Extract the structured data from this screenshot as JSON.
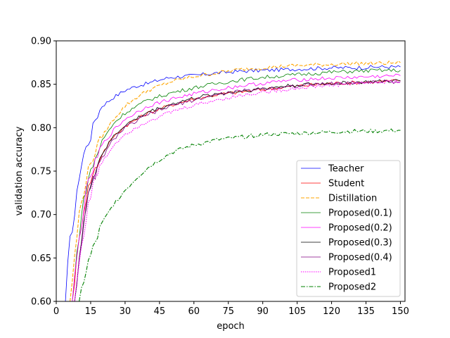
{
  "chart_data": {
    "type": "line",
    "xlabel": "epoch",
    "ylabel": "validation accuracy",
    "xlim": [
      0,
      152
    ],
    "ylim": [
      0.6,
      0.9
    ],
    "xticks": [
      0,
      15,
      30,
      45,
      60,
      75,
      90,
      105,
      120,
      135,
      150
    ],
    "yticks": [
      0.6,
      0.65,
      0.7,
      0.75,
      0.8,
      0.85,
      0.9
    ],
    "xtick_labels": [
      "0",
      "15",
      "30",
      "45",
      "60",
      "75",
      "90",
      "105",
      "120",
      "135",
      "150"
    ],
    "ytick_labels": [
      "0.60",
      "0.65",
      "0.70",
      "0.75",
      "0.80",
      "0.85",
      "0.90"
    ],
    "grid": false,
    "legend_position": "lower-right",
    "series": [
      {
        "name": "Teacher",
        "color": "#0000ff",
        "dash": "solid",
        "points": [
          [
            4,
            0.6
          ],
          [
            5,
            0.64
          ],
          [
            6,
            0.67
          ],
          [
            8,
            0.7
          ],
          [
            10,
            0.745
          ],
          [
            12,
            0.77
          ],
          [
            15,
            0.79
          ],
          [
            17,
            0.81
          ],
          [
            20,
            0.825
          ],
          [
            25,
            0.835
          ],
          [
            30,
            0.843
          ],
          [
            35,
            0.848
          ],
          [
            40,
            0.851
          ],
          [
            45,
            0.855
          ],
          [
            50,
            0.858
          ],
          [
            55,
            0.859
          ],
          [
            60,
            0.86
          ],
          [
            70,
            0.863
          ],
          [
            80,
            0.865
          ],
          [
            90,
            0.866
          ],
          [
            100,
            0.867
          ],
          [
            110,
            0.868
          ],
          [
            120,
            0.869
          ],
          [
            130,
            0.869
          ],
          [
            140,
            0.87
          ],
          [
            150,
            0.87
          ]
        ]
      },
      {
        "name": "Student",
        "color": "#ff0000",
        "dash": "solid",
        "points": [
          [
            7,
            0.6
          ],
          [
            9,
            0.65
          ],
          [
            11,
            0.69
          ],
          [
            13,
            0.72
          ],
          [
            15,
            0.74
          ],
          [
            20,
            0.77
          ],
          [
            25,
            0.79
          ],
          [
            30,
            0.802
          ],
          [
            40,
            0.817
          ],
          [
            50,
            0.826
          ],
          [
            60,
            0.833
          ],
          [
            70,
            0.838
          ],
          [
            80,
            0.841
          ],
          [
            90,
            0.844
          ],
          [
            100,
            0.847
          ],
          [
            110,
            0.849
          ],
          [
            120,
            0.851
          ],
          [
            130,
            0.852
          ],
          [
            140,
            0.853
          ],
          [
            150,
            0.854
          ]
        ]
      },
      {
        "name": "Distillation",
        "color": "#ffa500",
        "dash": "dashed",
        "points": [
          [
            6,
            0.6
          ],
          [
            8,
            0.65
          ],
          [
            10,
            0.7
          ],
          [
            13,
            0.74
          ],
          [
            15,
            0.76
          ],
          [
            20,
            0.79
          ],
          [
            25,
            0.81
          ],
          [
            30,
            0.825
          ],
          [
            35,
            0.835
          ],
          [
            40,
            0.843
          ],
          [
            45,
            0.848
          ],
          [
            50,
            0.853
          ],
          [
            60,
            0.859
          ],
          [
            70,
            0.863
          ],
          [
            80,
            0.867
          ],
          [
            90,
            0.869
          ],
          [
            100,
            0.871
          ],
          [
            110,
            0.872
          ],
          [
            120,
            0.873
          ],
          [
            130,
            0.874
          ],
          [
            140,
            0.874
          ],
          [
            150,
            0.875
          ]
        ]
      },
      {
        "name": "Proposed(0.1)",
        "color": "#008000",
        "dash": "solid",
        "points": [
          [
            7,
            0.6
          ],
          [
            9,
            0.655
          ],
          [
            11,
            0.7
          ],
          [
            13,
            0.73
          ],
          [
            15,
            0.75
          ],
          [
            20,
            0.785
          ],
          [
            25,
            0.805
          ],
          [
            30,
            0.817
          ],
          [
            40,
            0.832
          ],
          [
            50,
            0.84
          ],
          [
            60,
            0.846
          ],
          [
            70,
            0.851
          ],
          [
            80,
            0.855
          ],
          [
            90,
            0.858
          ],
          [
            100,
            0.86
          ],
          [
            110,
            0.862
          ],
          [
            120,
            0.864
          ],
          [
            130,
            0.865
          ],
          [
            140,
            0.866
          ],
          [
            150,
            0.866
          ]
        ]
      },
      {
        "name": "Proposed(0.2)",
        "color": "#ff00ff",
        "dash": "solid",
        "points": [
          [
            7,
            0.6
          ],
          [
            9,
            0.65
          ],
          [
            11,
            0.69
          ],
          [
            13,
            0.725
          ],
          [
            15,
            0.745
          ],
          [
            20,
            0.78
          ],
          [
            25,
            0.797
          ],
          [
            30,
            0.81
          ],
          [
            40,
            0.825
          ],
          [
            50,
            0.833
          ],
          [
            60,
            0.839
          ],
          [
            70,
            0.844
          ],
          [
            80,
            0.848
          ],
          [
            90,
            0.851
          ],
          [
            100,
            0.854
          ],
          [
            110,
            0.856
          ],
          [
            120,
            0.857
          ],
          [
            130,
            0.858
          ],
          [
            140,
            0.859
          ],
          [
            150,
            0.86
          ]
        ]
      },
      {
        "name": "Proposed(0.3)",
        "color": "#000000",
        "dash": "solid",
        "points": [
          [
            8,
            0.6
          ],
          [
            10,
            0.65
          ],
          [
            12,
            0.69
          ],
          [
            14,
            0.72
          ],
          [
            16,
            0.745
          ],
          [
            20,
            0.77
          ],
          [
            25,
            0.79
          ],
          [
            30,
            0.803
          ],
          [
            40,
            0.818
          ],
          [
            50,
            0.827
          ],
          [
            60,
            0.834
          ],
          [
            70,
            0.839
          ],
          [
            80,
            0.842
          ],
          [
            90,
            0.845
          ],
          [
            100,
            0.848
          ],
          [
            110,
            0.85
          ],
          [
            120,
            0.851
          ],
          [
            130,
            0.852
          ],
          [
            140,
            0.853
          ],
          [
            150,
            0.854
          ]
        ]
      },
      {
        "name": "Proposed(0.4)",
        "color": "#800080",
        "dash": "solid",
        "points": [
          [
            8,
            0.6
          ],
          [
            10,
            0.65
          ],
          [
            12,
            0.69
          ],
          [
            14,
            0.72
          ],
          [
            16,
            0.74
          ],
          [
            20,
            0.765
          ],
          [
            25,
            0.787
          ],
          [
            30,
            0.8
          ],
          [
            40,
            0.815
          ],
          [
            50,
            0.825
          ],
          [
            60,
            0.832
          ],
          [
            70,
            0.838
          ],
          [
            80,
            0.842
          ],
          [
            90,
            0.845
          ],
          [
            100,
            0.847
          ],
          [
            110,
            0.849
          ],
          [
            120,
            0.851
          ],
          [
            130,
            0.852
          ],
          [
            140,
            0.853
          ],
          [
            150,
            0.853
          ]
        ]
      },
      {
        "name": "Proposed1",
        "color": "#ff00ff",
        "dash": "dotted",
        "points": [
          [
            8,
            0.6
          ],
          [
            10,
            0.645
          ],
          [
            12,
            0.68
          ],
          [
            14,
            0.71
          ],
          [
            16,
            0.735
          ],
          [
            20,
            0.76
          ],
          [
            25,
            0.78
          ],
          [
            30,
            0.793
          ],
          [
            40,
            0.808
          ],
          [
            50,
            0.818
          ],
          [
            60,
            0.826
          ],
          [
            70,
            0.832
          ],
          [
            80,
            0.837
          ],
          [
            90,
            0.841
          ],
          [
            100,
            0.844
          ],
          [
            110,
            0.847
          ],
          [
            120,
            0.849
          ],
          [
            130,
            0.851
          ],
          [
            140,
            0.852
          ],
          [
            150,
            0.853
          ]
        ]
      },
      {
        "name": "Proposed2",
        "color": "#008000",
        "dash": "dashdot",
        "points": [
          [
            10,
            0.6
          ],
          [
            12,
            0.625
          ],
          [
            14,
            0.645
          ],
          [
            16,
            0.66
          ],
          [
            18,
            0.675
          ],
          [
            20,
            0.69
          ],
          [
            25,
            0.712
          ],
          [
            30,
            0.728
          ],
          [
            35,
            0.742
          ],
          [
            40,
            0.754
          ],
          [
            45,
            0.763
          ],
          [
            50,
            0.771
          ],
          [
            55,
            0.776
          ],
          [
            60,
            0.78
          ],
          [
            70,
            0.786
          ],
          [
            80,
            0.789
          ],
          [
            90,
            0.792
          ],
          [
            100,
            0.793
          ],
          [
            110,
            0.794
          ],
          [
            120,
            0.795
          ],
          [
            130,
            0.796
          ],
          [
            140,
            0.796
          ],
          [
            150,
            0.797
          ]
        ]
      }
    ]
  }
}
